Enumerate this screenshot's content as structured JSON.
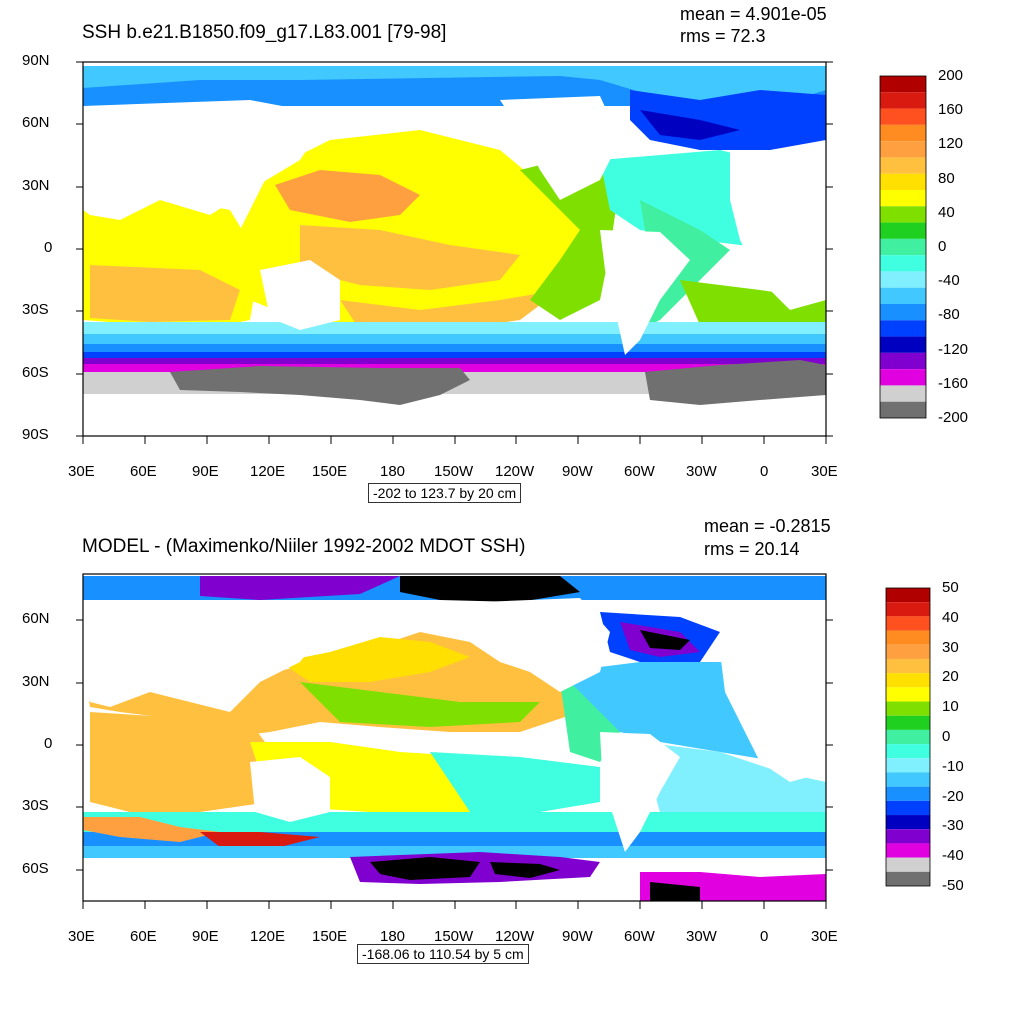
{
  "top_panel": {
    "title": "SSH b.e21.B1850.f09_g17.L83.001 [79-98]",
    "mean": "mean = 4.901e-05",
    "rms": "rms = 72.3",
    "range_note": "-202 to 123.7 by 20 cm",
    "lat_labels": [
      "90N",
      "60N",
      "30N",
      "0",
      "30S",
      "60S",
      "90S"
    ],
    "lon_labels": [
      "30E",
      "60E",
      "90E",
      "120E",
      "150E",
      "180",
      "150W",
      "120W",
      "90W",
      "60W",
      "30W",
      "0",
      "30E"
    ],
    "colorbar_labels": [
      "200",
      "160",
      "120",
      "80",
      "40",
      "0",
      "-40",
      "-80",
      "-120",
      "-160",
      "-200"
    ],
    "colorbar_colors": [
      "#b00000",
      "#d81a10",
      "#ff5020",
      "#ff8c20",
      "#ffa040",
      "#ffc040",
      "#ffe000",
      "#ffff00",
      "#7fe000",
      "#20d020",
      "#40f0a0",
      "#40ffe0",
      "#80f0ff",
      "#40c8ff",
      "#1890ff",
      "#0040ff",
      "#0000c0",
      "#8000d0",
      "#e000e0",
      "#d0d0d0",
      "#707070"
    ]
  },
  "bottom_panel": {
    "title": "MODEL - (Maximenko/Niiler 1992-2002 MDOT SSH)",
    "mean": "mean = -0.2815",
    "rms": "rms = 20.14",
    "range_note": "-168.06 to 110.54 by 5 cm",
    "lat_labels": [
      "60N",
      "30N",
      "0",
      "30S",
      "60S"
    ],
    "lon_labels": [
      "30E",
      "60E",
      "90E",
      "120E",
      "150E",
      "180",
      "150W",
      "120W",
      "90W",
      "60W",
      "30W",
      "0",
      "30E"
    ],
    "colorbar_labels": [
      "50",
      "40",
      "30",
      "20",
      "10",
      "0",
      "-10",
      "-20",
      "-30",
      "-40",
      "-50"
    ],
    "colorbar_colors": [
      "#b00000",
      "#d81a10",
      "#ff5020",
      "#ff8c20",
      "#ffa040",
      "#ffc040",
      "#ffe000",
      "#ffff00",
      "#7fe000",
      "#20d020",
      "#40f0a0",
      "#40ffe0",
      "#80f0ff",
      "#40c8ff",
      "#1890ff",
      "#0040ff",
      "#0000c0",
      "#8000d0",
      "#e000e0",
      "#d0d0d0",
      "#707070"
    ]
  }
}
